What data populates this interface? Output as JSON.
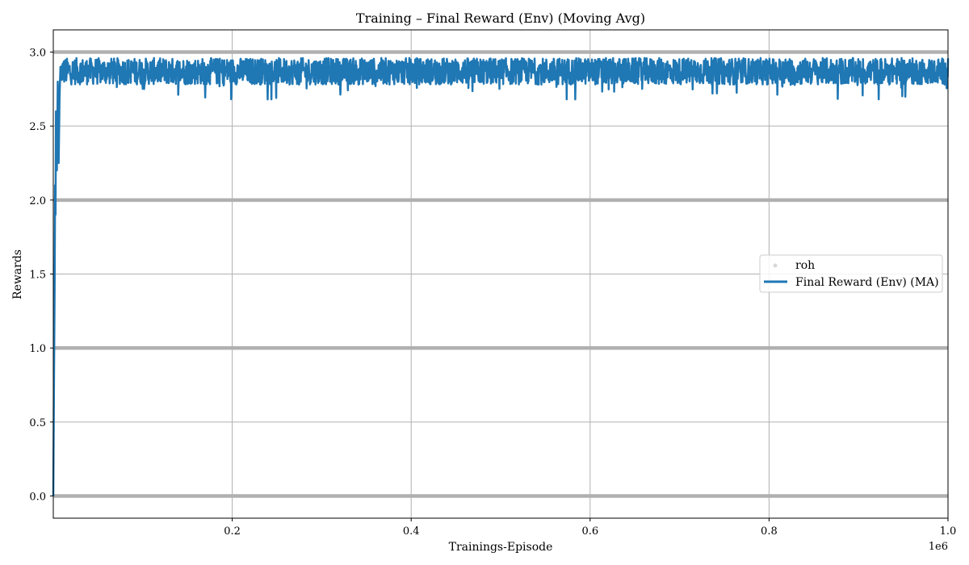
{
  "chart_data": {
    "type": "line",
    "title": "Training – Final Reward (Env) (Moving Avg)",
    "xlabel": "Trainings-Episode",
    "ylabel": "Rewards",
    "x_scale_label": "1e6",
    "xlim": [
      0,
      1.0
    ],
    "ylim": [
      -0.15,
      3.15
    ],
    "x_ticks": [
      0.2,
      0.4,
      0.6,
      0.8,
      1.0
    ],
    "x_tick_labels": [
      "0.2",
      "0.4",
      "0.6",
      "0.8",
      "1.0"
    ],
    "y_ticks": [
      0.0,
      0.5,
      1.0,
      1.5,
      2.0,
      2.5,
      3.0
    ],
    "y_tick_labels": [
      "0.0",
      "0.5",
      "1.0",
      "1.5",
      "2.0",
      "2.5",
      "3.0"
    ],
    "grid": true,
    "legend_position": "center-right",
    "series": [
      {
        "name": "roh",
        "kind": "scatter",
        "color": "#bdbdbd",
        "values": [
          0,
          1,
          2,
          3
        ]
      },
      {
        "name": "Final Reward (Env) (MA)",
        "kind": "line",
        "color": "#1f77b4",
        "ramp": [
          {
            "x": 0.0,
            "y": 0.0
          },
          {
            "x": 0.0008,
            "y": 0.8
          },
          {
            "x": 0.0015,
            "y": 1.4
          },
          {
            "x": 0.002,
            "y": 2.1
          },
          {
            "x": 0.0025,
            "y": 1.9
          },
          {
            "x": 0.003,
            "y": 2.6
          },
          {
            "x": 0.004,
            "y": 2.2
          },
          {
            "x": 0.005,
            "y": 2.8
          },
          {
            "x": 0.006,
            "y": 2.25
          },
          {
            "x": 0.007,
            "y": 2.7
          },
          {
            "x": 0.008,
            "y": 2.9
          }
        ],
        "steady_mean": 2.87,
        "steady_low": 2.68,
        "steady_high": 2.98
      }
    ]
  }
}
